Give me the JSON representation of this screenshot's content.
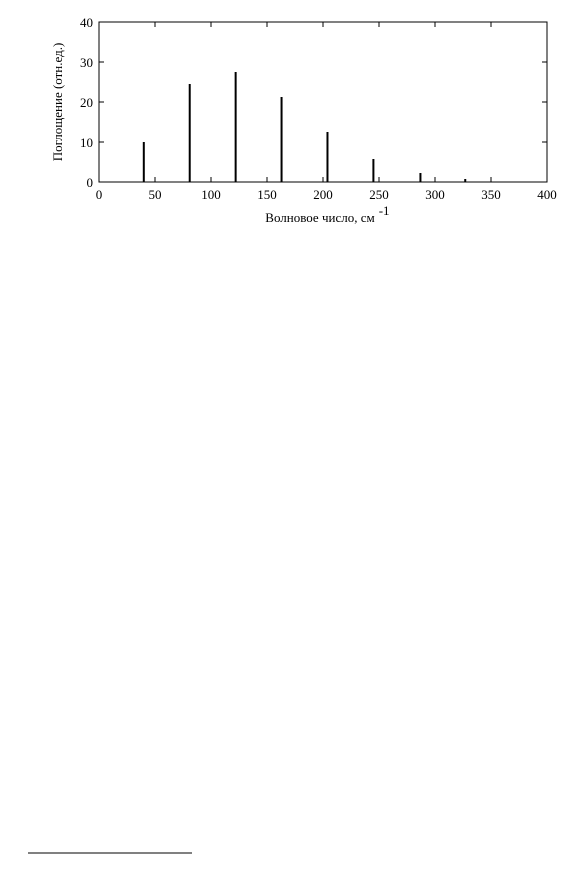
{
  "chart_data": {
    "type": "stem",
    "xlabel": "Волновое число,  см",
    "xlabel_superscript": "-1",
    "ylabel": "Поглощение (отн.ед.)",
    "x": [
      40,
      81,
      122,
      163,
      204,
      245,
      287,
      327
    ],
    "values": [
      10,
      24.5,
      27.5,
      21.25,
      12.5,
      5.75,
      2.25,
      0.75
    ],
    "color": "#000000",
    "xlim": [
      0,
      400
    ],
    "xticks": [
      0,
      50,
      100,
      150,
      200,
      250,
      300,
      350,
      400
    ],
    "ylim": [
      0,
      40
    ],
    "yticks": [
      0,
      10,
      20,
      30,
      40
    ],
    "grid": false
  }
}
